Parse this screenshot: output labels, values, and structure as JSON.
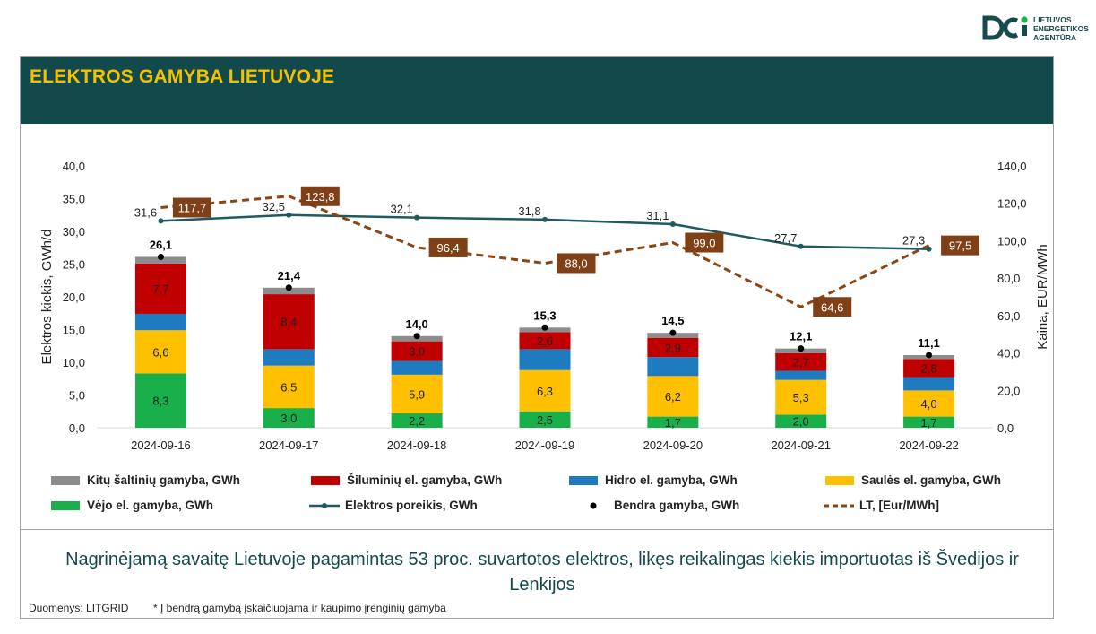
{
  "logo": {
    "lines": [
      "LIETUVOS",
      "ENERGETIKOS",
      "AGENTŪRA"
    ]
  },
  "header": {
    "title": "ELEKTROS GAMYBA LIETUVOJE"
  },
  "chart_data": {
    "type": "bar",
    "stacked": true,
    "categories": [
      "2024-09-16",
      "2024-09-17",
      "2024-09-18",
      "2024-09-19",
      "2024-09-20",
      "2024-09-21",
      "2024-09-22"
    ],
    "ylabel": "Elektros kiekis, GWh/d",
    "y2label": "Kaina, EUR/MWh",
    "ylim": [
      0,
      40
    ],
    "yticks": [
      "0,0",
      "5,0",
      "10,0",
      "15,0",
      "20,0",
      "25,0",
      "30,0",
      "35,0",
      "40,0"
    ],
    "y2lim": [
      0,
      140
    ],
    "y2ticks": [
      "0,0",
      "20,0",
      "40,0",
      "60,0",
      "80,0",
      "100,0",
      "120,0",
      "140,0"
    ],
    "series": [
      {
        "name": "Vėjo el. gamyba, GWh",
        "color": "#19b04b",
        "values": [
          8.3,
          3.0,
          2.2,
          2.5,
          1.7,
          2.0,
          1.7
        ],
        "labels": [
          "8,3",
          "3,0",
          "2,2",
          "2,5",
          "1,7",
          "2,0",
          "1,7"
        ]
      },
      {
        "name": "Saulės el. gamyba, GWh",
        "color": "#ffc000",
        "values": [
          6.6,
          6.5,
          5.9,
          6.3,
          6.2,
          5.3,
          4.0
        ],
        "labels": [
          "6,6",
          "6,5",
          "5,9",
          "6,3",
          "6,2",
          "5,3",
          "4,0"
        ]
      },
      {
        "name": "Hidro el. gamyba, GWh",
        "color": "#1f7bbf",
        "values": [
          2.5,
          2.5,
          2.1,
          3.2,
          2.9,
          1.4,
          2.0
        ]
      },
      {
        "name": "Šiluminių el. gamyba, GWh",
        "color": "#c00000",
        "values": [
          7.7,
          8.4,
          3.0,
          2.6,
          2.9,
          2.7,
          2.8
        ],
        "labels": [
          "7,7",
          "8,4",
          "3,0",
          "2,6",
          "2,9",
          "2,7",
          "2,8"
        ]
      },
      {
        "name": "Kitų šaltinių gamyba,  GWh",
        "color": "#8c8c8c",
        "values": [
          1.0,
          1.0,
          0.8,
          0.7,
          0.8,
          0.7,
          0.6
        ]
      }
    ],
    "total": {
      "name": "Bendra gamyba, GWh",
      "values": [
        26.1,
        21.4,
        14.0,
        15.3,
        14.5,
        12.1,
        11.1
      ],
      "labels": [
        "26,1",
        "21,4",
        "14,0",
        "15,3",
        "14,5",
        "12,1",
        "11,1"
      ]
    },
    "demand": {
      "name": "Elektros poreikis, GWh",
      "color": "#1e5a5e",
      "values": [
        31.6,
        32.5,
        32.1,
        31.8,
        31.1,
        27.7,
        27.3
      ],
      "labels": [
        "31,6",
        "32,5",
        "32,1",
        "31,8",
        "31,1",
        "27,7",
        "27,3"
      ]
    },
    "price": {
      "name": "LT, [Eur/MWh]",
      "color": "#8b4513",
      "values": [
        117.7,
        123.8,
        96.4,
        88.0,
        99.0,
        64.6,
        97.5
      ],
      "labels": [
        "117,7",
        "123,8",
        "96,4",
        "88,0",
        "99,0",
        "64,6",
        "97,5"
      ]
    }
  },
  "summary": "Nagrinėjamą savaitę Lietuvoje pagamintas 53 proc. suvartotos elektros, likęs reikalingas kiekis importuotas iš Švedijos ir Lenkijos",
  "source": "Duomenys: LITGRID",
  "footnote": "* Į bendrą gamybą įskaičiuojama ir kaupimo įrenginių gamyba"
}
